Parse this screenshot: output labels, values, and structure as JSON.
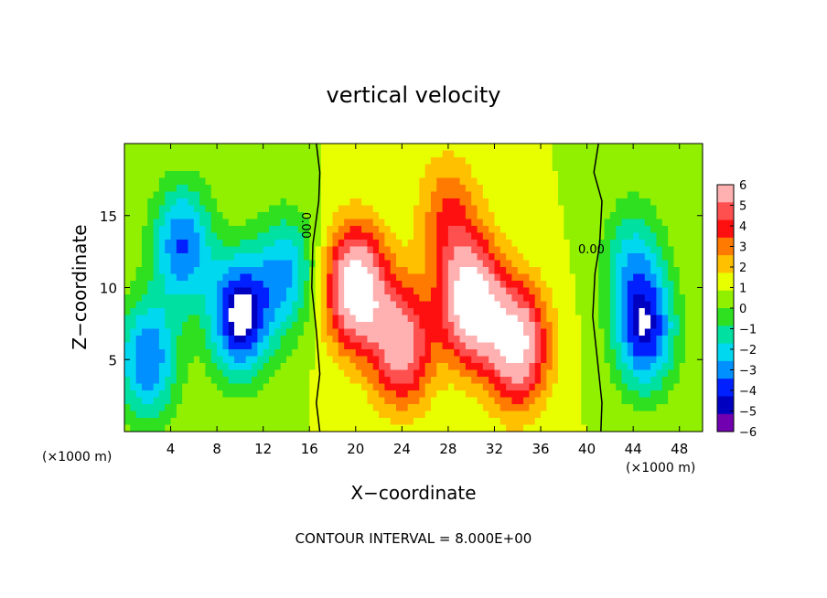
{
  "chart_data": {
    "type": "heatmap",
    "title": "vertical velocity",
    "xlabel": "X−coordinate",
    "ylabel": "Z−coordinate",
    "x_unit_left": "(×1000 m)",
    "x_unit_right": "(×1000 m)",
    "footer": "CONTOUR INTERVAL = 8.000E+00",
    "xlim": [
      0,
      50
    ],
    "ylim": [
      0,
      20
    ],
    "x_ticks": [
      4,
      8,
      12,
      16,
      20,
      24,
      28,
      32,
      36,
      40,
      44,
      48
    ],
    "y_ticks": [
      5,
      10,
      15
    ],
    "zero_contour_labels": [
      "0.00",
      "0.00"
    ],
    "colorbar": {
      "ticks": [
        6,
        5,
        4,
        3,
        2,
        1,
        0,
        -1,
        -2,
        -3,
        -4,
        -5,
        -6
      ],
      "tick_labels": [
        "6",
        "5",
        "4",
        "3",
        "2",
        "1",
        "0",
        "−1",
        "−2",
        "−3",
        "−4",
        "−5",
        "−6"
      ],
      "range": [
        -6,
        6
      ],
      "colors": [
        "#ffb0b0",
        "#ff5050",
        "#ff1010",
        "#ff7a00",
        "#ffc000",
        "#e8ff00",
        "#90f000",
        "#2ee020",
        "#00e0a0",
        "#00d8f0",
        "#0090ff",
        "#0020ff",
        "#0000c0",
        "#7000b0"
      ]
    },
    "features": [
      {
        "x": 5,
        "z": 13,
        "sign": -1,
        "strength": 5
      },
      {
        "x": 10,
        "z": 8,
        "sign": -1,
        "strength": 7
      },
      {
        "x": 14,
        "z": 11,
        "sign": -1,
        "strength": 4
      },
      {
        "x": 2,
        "z": 5,
        "sign": -1,
        "strength": 5
      },
      {
        "x": 20,
        "z": 10,
        "sign": 1,
        "strength": 8
      },
      {
        "x": 24,
        "z": 6,
        "sign": 1,
        "strength": 6
      },
      {
        "x": 30,
        "z": 9,
        "sign": 1,
        "strength": 8
      },
      {
        "x": 34,
        "z": 6,
        "sign": 1,
        "strength": 7
      },
      {
        "x": 28,
        "z": 15,
        "sign": 1,
        "strength": 3
      },
      {
        "x": 45,
        "z": 7,
        "sign": -1,
        "strength": 6
      },
      {
        "x": 44,
        "z": 12,
        "sign": -1,
        "strength": 3
      }
    ]
  }
}
